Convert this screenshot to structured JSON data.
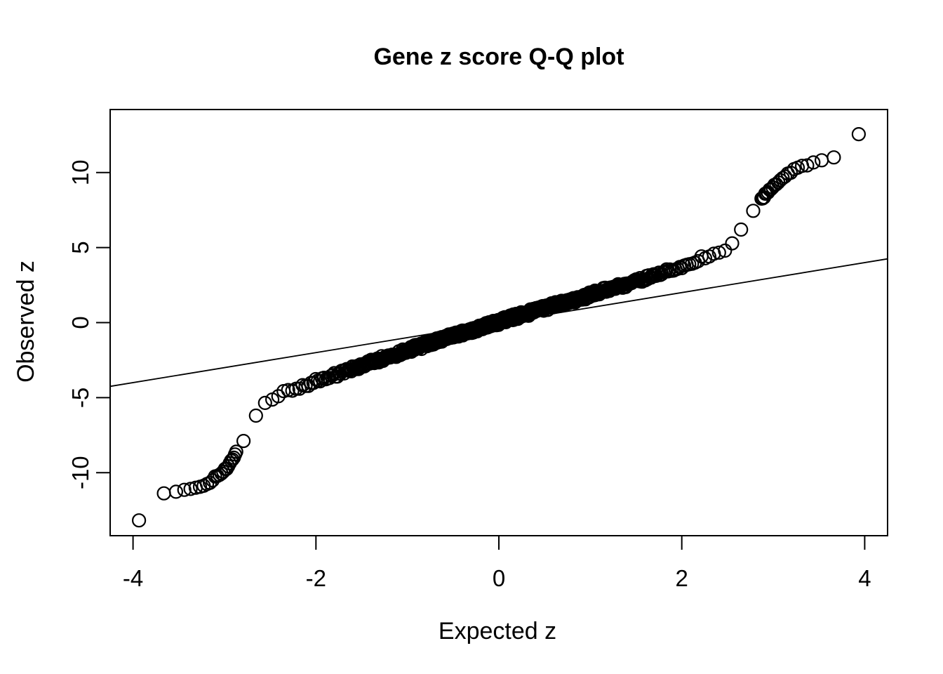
{
  "figure": {
    "background": "#ffffff",
    "foreground": "#000000"
  },
  "chart_data": {
    "type": "scatter",
    "subtype": "qq-plot",
    "title": "Gene z score Q-Q plot",
    "xlabel": "Expected z",
    "ylabel": "Observed z",
    "xlim": [
      -4.25,
      4.25
    ],
    "ylim": [
      -14.2,
      14.2
    ],
    "x_ticks": [
      -4,
      -2,
      0,
      2,
      4
    ],
    "y_ticks": [
      -10,
      -5,
      0,
      5,
      10
    ],
    "grid": false,
    "legend": null,
    "point_style": {
      "shape": "open-circle",
      "radius_px": 9,
      "stroke_px": 2.2,
      "color": "#000000"
    },
    "reference_line": {
      "intercept": 0,
      "slope": 1,
      "stroke_px": 1.8,
      "color": "#000000"
    },
    "n_points_virtual": 12000,
    "curve_anchors": [
      [
        -3.94,
        -13.2
      ],
      [
        -3.78,
        -12.6
      ],
      [
        -3.69,
        -11.4
      ],
      [
        -3.55,
        -11.3
      ],
      [
        -3.4,
        -11.1
      ],
      [
        -3.28,
        -10.95
      ],
      [
        -3.15,
        -10.6
      ],
      [
        -3.02,
        -10.0
      ],
      [
        -2.92,
        -9.2
      ],
      [
        -2.82,
        -8.1
      ],
      [
        -2.72,
        -6.8
      ],
      [
        -2.6,
        -5.7
      ],
      [
        -2.5,
        -5.15
      ],
      [
        -2.35,
        -4.65
      ],
      [
        -2.1,
        -4.1
      ],
      [
        -1.8,
        -3.5
      ],
      [
        -1.5,
        -2.85
      ],
      [
        -1.2,
        -2.25
      ],
      [
        -0.8,
        -1.45
      ],
      [
        -0.4,
        -0.7
      ],
      [
        0.0,
        0.05
      ],
      [
        0.4,
        0.8
      ],
      [
        0.8,
        1.5
      ],
      [
        1.2,
        2.2
      ],
      [
        1.5,
        2.75
      ],
      [
        1.8,
        3.35
      ],
      [
        2.1,
        3.95
      ],
      [
        2.35,
        4.55
      ],
      [
        2.5,
        5.0
      ],
      [
        2.6,
        5.6
      ],
      [
        2.72,
        6.7
      ],
      [
        2.82,
        7.9
      ],
      [
        2.92,
        8.6
      ],
      [
        3.02,
        9.2
      ],
      [
        3.15,
        9.9
      ],
      [
        3.28,
        10.35
      ],
      [
        3.4,
        10.6
      ],
      [
        3.55,
        10.85
      ],
      [
        3.69,
        11.05
      ],
      [
        3.78,
        11.35
      ],
      [
        3.94,
        12.6
      ]
    ],
    "extreme_points": {
      "low": [
        [
          -3.93,
          -13.2
        ],
        [
          -3.77,
          -12.6
        ]
      ],
      "high": [
        [
          3.93,
          12.6
        ]
      ]
    }
  }
}
